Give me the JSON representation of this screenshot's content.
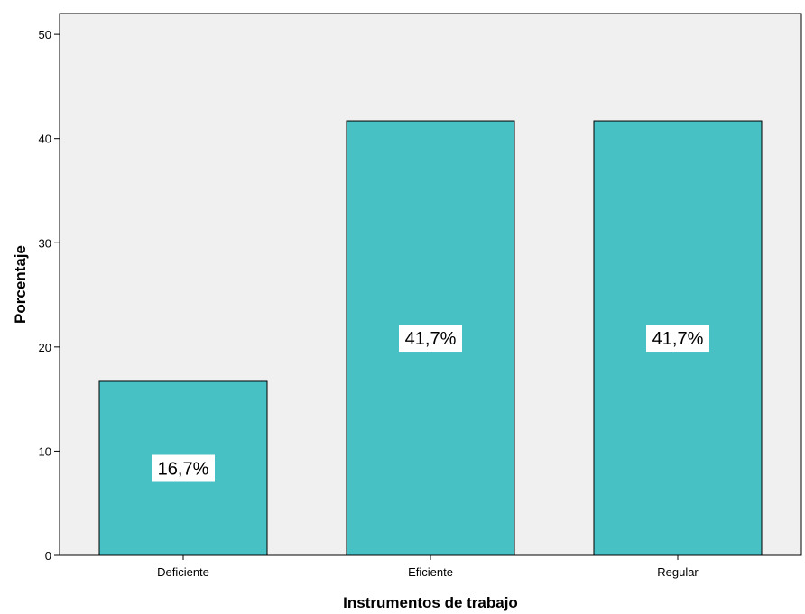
{
  "chart_data": {
    "type": "bar",
    "title": "",
    "xlabel": "Instrumentos de trabajo",
    "ylabel": "Porcentaje",
    "categories": [
      "Deficiente",
      "Eficiente",
      "Regular"
    ],
    "values": [
      16.7,
      41.7,
      41.7
    ],
    "data_labels": [
      "16,7%",
      "41,7%",
      "41,7%"
    ],
    "ylim": [
      0,
      52
    ],
    "yticks": [
      0,
      10,
      20,
      30,
      40,
      50
    ],
    "grid": false,
    "legend": "none",
    "colors": {
      "bar_fill": "#48C1C5",
      "bar_stroke": "#000000",
      "plot_background": "#F0F0F0",
      "page_background": "#FFFFFF"
    }
  }
}
